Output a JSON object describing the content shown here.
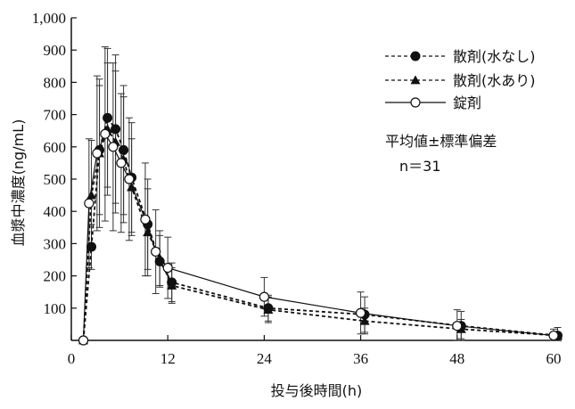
{
  "chart_data": {
    "type": "line",
    "title": "",
    "xlabel": "投与後時間(h)",
    "ylabel": "血漿中濃度(ng/mL)",
    "xlim": [
      0,
      61
    ],
    "ylim": [
      0,
      1000
    ],
    "xticks": [
      0,
      12,
      24,
      36,
      48,
      60
    ],
    "xtick_labels": [
      "0",
      "12",
      "24",
      "36",
      "48",
      "60"
    ],
    "yticks": [
      100,
      200,
      300,
      400,
      500,
      600,
      700,
      800,
      900,
      1000
    ],
    "ytick_labels": [
      "100",
      "200",
      "300",
      "400",
      "500",
      "600",
      "700",
      "800",
      "900",
      "1,000"
    ],
    "grid": false,
    "legend_position": "top-right",
    "series": [
      {
        "name": "散剤(水なし)",
        "marker": "filled-circle",
        "line": "dashed",
        "x": [
          1.5,
          2.5,
          3.5,
          4.5,
          5.5,
          6.5,
          7.5,
          9.5,
          11.0,
          12.5,
          24.5,
          36.5,
          48.5,
          60.5
        ],
        "y": [
          0,
          290,
          590,
          690,
          655,
          590,
          505,
          360,
          245,
          180,
          100,
          80,
          45,
          15
        ],
        "err": [
          0,
          70,
          200,
          215,
          230,
          200,
          170,
          140,
          80,
          60,
          40,
          55,
          45,
          25
        ]
      },
      {
        "name": "散剤(水あり)",
        "marker": "filled-triangle",
        "line": "dashed",
        "x": [
          1.5,
          2.5,
          3.5,
          4.5,
          5.5,
          6.5,
          7.5,
          9.5,
          11.0,
          12.5,
          24.5,
          36.5,
          48.5,
          60.5
        ],
        "y": [
          0,
          450,
          580,
          655,
          615,
          560,
          475,
          335,
          255,
          170,
          95,
          60,
          35,
          15
        ],
        "err": [
          0,
          170,
          230,
          205,
          220,
          195,
          150,
          135,
          85,
          55,
          40,
          40,
          30,
          25
        ]
      },
      {
        "name": "錠剤",
        "marker": "open-circle",
        "line": "solid",
        "x": [
          1.5,
          2.2,
          3.2,
          4.2,
          5.2,
          6.2,
          7.2,
          9.2,
          10.5,
          12.0,
          24.0,
          36.0,
          48.0,
          60.0
        ],
        "y": [
          0,
          425,
          580,
          640,
          600,
          550,
          500,
          375,
          275,
          225,
          135,
          85,
          45,
          15
        ],
        "err": [
          0,
          200,
          240,
          270,
          260,
          215,
          190,
          175,
          130,
          95,
          60,
          65,
          50,
          20
        ]
      }
    ],
    "annotations": [
      "平均値±標準偏差",
      "n＝31"
    ]
  }
}
